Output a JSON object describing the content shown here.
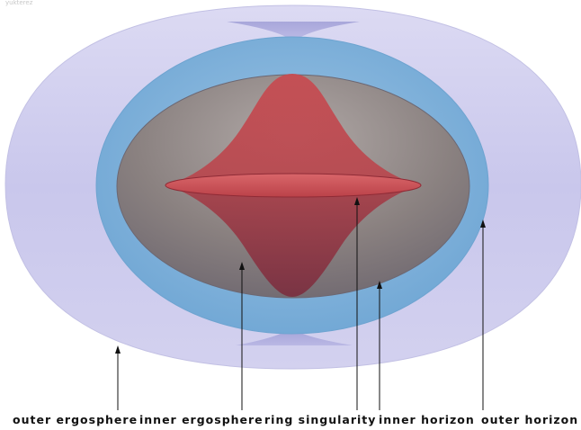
{
  "watermark": "yukterez",
  "colors": {
    "outer_ergosphere": "#c8c6ea",
    "outer_horizon": "#7fb2d8",
    "inner_horizon": "#7d7478",
    "inner_ergosphere": "#b23c48",
    "ring_singularity": "#c94a50",
    "arrow": "#111111",
    "background": "#ffffff"
  },
  "labels": {
    "outer_ergosphere": "outer ergosphere",
    "inner_ergosphere": "inner ergosphere",
    "ring_singularity": "ring singularity",
    "inner_horizon": "inner horizon",
    "outer_horizon": "outer horizon"
  }
}
